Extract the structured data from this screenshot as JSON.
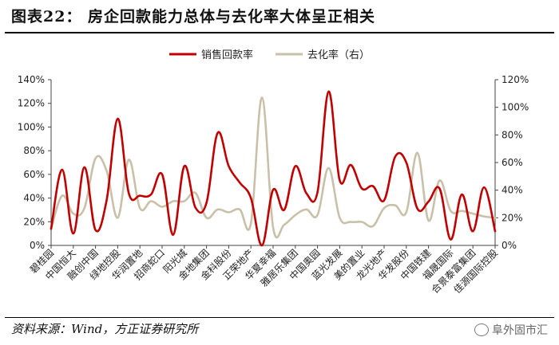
{
  "header": {
    "title": "图表22： 房企回款能力总体与去化率大体呈正相关"
  },
  "footer": {
    "source": "资料来源：Wind，方正证券研究所",
    "watermark": "阜外固市汇"
  },
  "chart_data": {
    "type": "line",
    "categories": [
      "碧桂园",
      "中国恒大",
      "融创中国",
      "绿地控股",
      "华润置地",
      "招商蛇口",
      "阳光城",
      "金地集团",
      "金科股份",
      "正荣地产",
      "华夏幸福",
      "雅居乐集团",
      "中国奥园",
      "蓝光发展",
      "美的置业",
      "龙光地产",
      "华发股份",
      "中国铁建",
      "福晟国际",
      "合景泰富集团",
      "佳源国际控股"
    ],
    "left_axis": {
      "ylim": [
        0,
        140
      ],
      "ticks": [
        "0%",
        "20%",
        "40%",
        "60%",
        "80%",
        "100%",
        "120%",
        "140%"
      ]
    },
    "right_axis": {
      "ylim": [
        0,
        120
      ],
      "ticks": [
        "0%",
        "20%",
        "40%",
        "60%",
        "80%",
        "100%",
        "120%"
      ]
    },
    "series": [
      {
        "name": "销售回款率",
        "axis": "left",
        "color": "#c00000",
        "x": [
          0,
          0.5,
          1,
          1.5,
          2,
          2.5,
          3,
          3.5,
          4,
          4.5,
          5,
          5.5,
          6,
          6.5,
          7,
          7.5,
          8,
          8.5,
          9,
          9.5,
          10,
          10.5,
          11,
          11.5,
          12,
          12.5,
          13,
          13.5,
          14,
          14.5,
          15,
          15.5,
          16,
          16.5,
          17,
          17.5,
          18,
          18.5,
          19,
          19.5,
          20
        ],
        "values": [
          14,
          64,
          10,
          66,
          13,
          38,
          107,
          44,
          42,
          43,
          60,
          9,
          67,
          32,
          36,
          95,
          67,
          53,
          40,
          0,
          47,
          30,
          67,
          44,
          45,
          130,
          55,
          68,
          48,
          50,
          38,
          75,
          70,
          31,
          37,
          48,
          5,
          43,
          12,
          49,
          12
        ]
      },
      {
        "name": "去化率（右）",
        "axis": "right",
        "color": "#c8c0a8",
        "x": [
          0,
          0.5,
          1,
          1.5,
          2,
          2.5,
          3,
          3.5,
          4,
          4.5,
          5,
          5.5,
          6,
          6.5,
          7,
          7.5,
          8,
          8.5,
          9,
          9.5,
          10,
          10.5,
          11,
          11.5,
          12,
          12.5,
          13,
          13.5,
          14,
          14.5,
          15,
          15.5,
          16,
          16.5,
          17,
          17.5,
          18,
          18.5,
          19,
          19.5,
          20
        ],
        "values": [
          12,
          36,
          23,
          27,
          63,
          54,
          20,
          62,
          27,
          32,
          28,
          32,
          32,
          38,
          20,
          26,
          24,
          26,
          16,
          107,
          13,
          15,
          22,
          26,
          22,
          56,
          20,
          17,
          17,
          14,
          27,
          29,
          24,
          67,
          18,
          47,
          25,
          25,
          23,
          21,
          20
        ]
      }
    ],
    "legend": "top-center",
    "grid": false
  }
}
